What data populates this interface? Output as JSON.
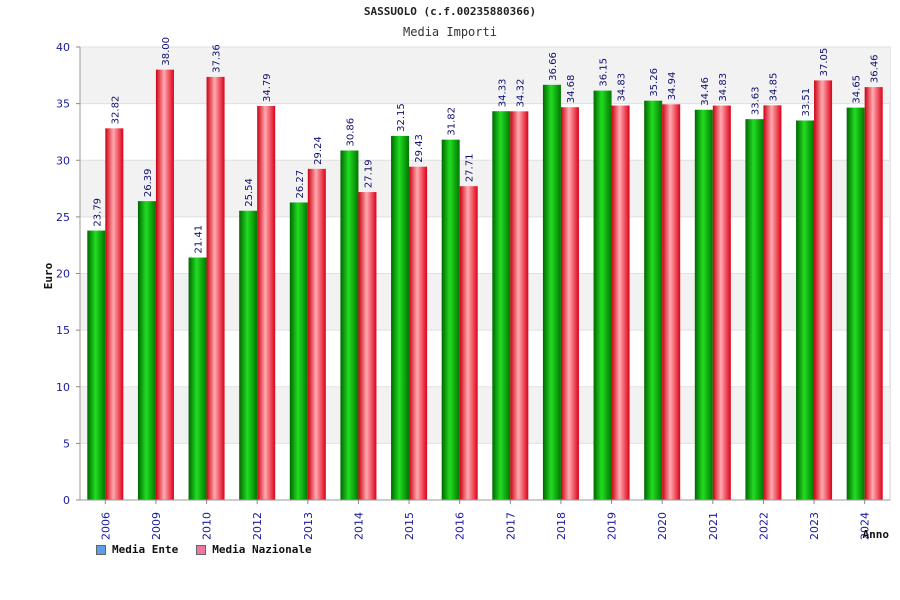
{
  "chart_data": {
    "type": "bar",
    "title": "SASSUOLO (c.f.00235880366)",
    "subtitle": "Media Importi",
    "ylabel": "Euro",
    "xlabel": "Anno",
    "ylim": [
      0,
      40
    ],
    "yticks": [
      0,
      5,
      10,
      15,
      20,
      25,
      30,
      35,
      40
    ],
    "categories": [
      "2006",
      "2009",
      "2010",
      "2012",
      "2013",
      "2014",
      "2015",
      "2016",
      "2017",
      "2018",
      "2019",
      "2020",
      "2021",
      "2022",
      "2023",
      "2024"
    ],
    "series": [
      {
        "name": "Media Ente",
        "color": "#00aa00",
        "legend_color": "#5aa0e6",
        "values": [
          23.79,
          26.39,
          21.41,
          25.54,
          26.27,
          30.86,
          32.15,
          31.82,
          34.33,
          36.66,
          36.15,
          35.26,
          34.46,
          33.63,
          33.51,
          34.65
        ],
        "labels": [
          "23.79",
          "26.39",
          "21.41",
          "25.54",
          "26.27",
          "30.86",
          "32.15",
          "31.82",
          "34.33",
          "36.66",
          "36.15",
          "35.26",
          "34.46",
          "33.63",
          "33.51",
          "34.65"
        ]
      },
      {
        "name": "Media Nazionale",
        "color": "#e8112d",
        "legend_color": "#e87aa0",
        "values": [
          32.82,
          38.0,
          37.36,
          34.79,
          29.24,
          27.19,
          29.43,
          27.71,
          34.32,
          34.68,
          34.83,
          34.94,
          34.83,
          34.85,
          37.05,
          36.46
        ],
        "labels": [
          "32.82",
          "38.00",
          "37.36",
          "34.79",
          "29.24",
          "27.19",
          "29.43",
          "27.71",
          "34.32",
          "34.68",
          "34.83",
          "34.94",
          "34.83",
          "34.85",
          "37.05",
          "36.46"
        ]
      }
    ],
    "grid": true,
    "legend_position": "bottom-left"
  }
}
